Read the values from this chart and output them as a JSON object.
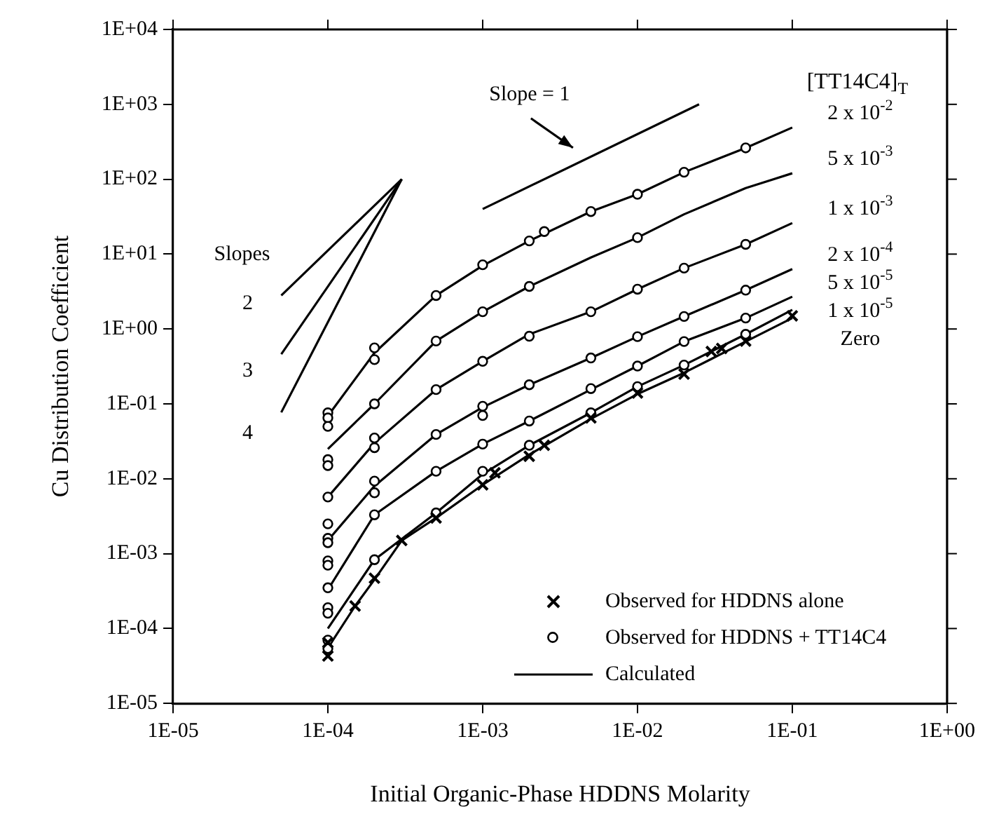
{
  "chart_data": {
    "type": "line",
    "xlabel": "Initial Organic-Phase HDDNS Molarity",
    "ylabel": "Cu Distribution Coefficient",
    "log": "xy",
    "grid": false,
    "legend": "bottom right",
    "xlim": [
      1e-05,
      1
    ],
    "ylim": [
      1e-05,
      10000
    ],
    "xticks": [
      {
        "value": 1e-05,
        "label": "1E-05"
      },
      {
        "value": 0.0001,
        "label": "1E-04"
      },
      {
        "value": 0.001,
        "label": "1E-03"
      },
      {
        "value": 0.01,
        "label": "1E-02"
      },
      {
        "value": 0.1,
        "label": "1E-01"
      },
      {
        "value": 1,
        "label": "1E+00"
      }
    ],
    "yticks": [
      {
        "value": 1e-05,
        "label": "1E-05"
      },
      {
        "value": 0.0001,
        "label": "1E-04"
      },
      {
        "value": 0.001,
        "label": "1E-03"
      },
      {
        "value": 0.01,
        "label": "1E-02"
      },
      {
        "value": 0.1,
        "label": "1E-01"
      },
      {
        "value": 1,
        "label": "1E+00"
      },
      {
        "value": 10,
        "label": "1E+01"
      },
      {
        "value": 100,
        "label": "1E+02"
      },
      {
        "value": 1000,
        "label": "1E+03"
      },
      {
        "value": 10000,
        "label": "1E+04"
      }
    ],
    "series": [
      {
        "name": "Observed for HDDNS alone",
        "type": "scatter",
        "marker": "cross",
        "color": "#000000",
        "x": [
          0.0001,
          0.0001,
          0.00015,
          0.0002,
          0.0003,
          0.0005,
          0.001,
          0.0012,
          0.002,
          0.0025,
          0.005,
          0.01,
          0.02,
          0.03,
          0.035,
          0.05,
          0.1
        ],
        "values": [
          6.5e-05,
          4.3e-05,
          0.0002,
          0.00047,
          0.0015,
          0.003,
          0.0083,
          0.012,
          0.02,
          0.028,
          0.065,
          0.14,
          0.25,
          0.5,
          0.55,
          0.69,
          1.5
        ]
      },
      {
        "name": "Observed for HDDNS + TT14C4",
        "type": "scatter",
        "marker": "circle",
        "color": "#000000",
        "x": [
          0.0001,
          0.0001,
          0.0001,
          0.0001,
          0.0001,
          0.0001,
          0.0001,
          0.0001,
          0.0001,
          0.0001,
          0.0001,
          0.0001,
          0.0001,
          0.0001,
          0.0001,
          0.0001,
          0.0002,
          0.0002,
          0.0002,
          0.0002,
          0.0002,
          0.0002,
          0.0002,
          0.0002,
          0.0002,
          0.0005,
          0.0005,
          0.0005,
          0.0005,
          0.0005,
          0.0005,
          0.001,
          0.001,
          0.001,
          0.001,
          0.001,
          0.001,
          0.001,
          0.002,
          0.002,
          0.002,
          0.002,
          0.002,
          0.002,
          0.0025,
          0.005,
          0.005,
          0.005,
          0.005,
          0.005,
          0.01,
          0.01,
          0.01,
          0.01,
          0.01,
          0.01,
          0.02,
          0.02,
          0.02,
          0.02,
          0.02,
          0.05,
          0.05,
          0.05,
          0.05,
          0.05
        ],
        "values": [
          0.076,
          0.065,
          0.05,
          0.018,
          0.015,
          0.0057,
          0.0025,
          0.0016,
          0.0014,
          0.0008,
          0.0007,
          0.00035,
          0.00019,
          0.00016,
          7e-05,
          5.4e-05,
          0.56,
          0.39,
          0.1,
          0.035,
          0.026,
          0.0093,
          0.0065,
          0.0033,
          0.00083,
          2.8,
          0.69,
          0.155,
          0.039,
          0.0126,
          0.0035,
          7.2,
          1.7,
          0.37,
          0.093,
          0.07,
          0.029,
          0.0126,
          15,
          3.7,
          0.8,
          0.18,
          0.059,
          0.028,
          20,
          37,
          1.7,
          0.41,
          0.16,
          0.076,
          63,
          16.6,
          3.4,
          0.79,
          0.32,
          0.17,
          124,
          6.5,
          1.47,
          0.68,
          0.33,
          262,
          13.5,
          3.3,
          1.4,
          0.85
        ]
      },
      {
        "name": "Calculated",
        "marker": "none",
        "color": "#000000",
        "x": [
          0.0001,
          0.0002,
          0.0005,
          0.001,
          0.002,
          0.005,
          0.01,
          0.02,
          0.05,
          0.1
        ],
        "values": [
          0.069,
          0.48,
          2.8,
          7,
          15,
          37,
          63,
          124,
          262,
          490
        ]
      },
      {
        "marker": "none",
        "color": "#000000",
        "x": [
          0.0001,
          0.0002,
          0.0005,
          0.001,
          0.002,
          0.005,
          0.01,
          0.02,
          0.05,
          0.1
        ],
        "values": [
          0.025,
          0.1,
          0.69,
          1.7,
          3.7,
          9,
          16.6,
          34,
          76,
          120
        ]
      },
      {
        "marker": "none",
        "color": "#000000",
        "x": [
          0.0001,
          0.0002,
          0.0005,
          0.001,
          0.002,
          0.005,
          0.01,
          0.02,
          0.05,
          0.1
        ],
        "values": [
          0.0057,
          0.03,
          0.155,
          0.37,
          0.85,
          1.7,
          3.4,
          6.5,
          13.5,
          26
        ]
      },
      {
        "marker": "none",
        "color": "#000000",
        "x": [
          0.0001,
          0.0002,
          0.0005,
          0.001,
          0.002,
          0.005,
          0.01,
          0.02,
          0.05,
          0.1
        ],
        "values": [
          0.0015,
          0.008,
          0.039,
          0.09,
          0.18,
          0.41,
          0.79,
          1.47,
          3.3,
          6.3
        ]
      },
      {
        "marker": "none",
        "color": "#000000",
        "x": [
          0.0001,
          0.0002,
          0.0005,
          0.001,
          0.002,
          0.005,
          0.01,
          0.02,
          0.05,
          0.1
        ],
        "values": [
          0.00033,
          0.0033,
          0.0126,
          0.029,
          0.059,
          0.155,
          0.32,
          0.68,
          1.4,
          2.7
        ]
      },
      {
        "marker": "none",
        "color": "#000000",
        "x": [
          0.0001,
          0.0002,
          0.0005,
          0.001,
          0.002,
          0.005,
          0.01,
          0.02,
          0.05,
          0.1
        ],
        "values": [
          0.0001,
          0.00083,
          0.0035,
          0.0115,
          0.028,
          0.076,
          0.17,
          0.33,
          0.85,
          1.8
        ]
      },
      {
        "marker": "none",
        "color": "#000000",
        "x": [
          0.0001,
          0.00015,
          0.0002,
          0.0003,
          0.0005,
          0.001,
          0.002,
          0.005,
          0.01,
          0.02,
          0.05,
          0.1
        ],
        "values": [
          5.5e-05,
          0.0002,
          0.00045,
          0.0015,
          0.003,
          0.0083,
          0.021,
          0.063,
          0.135,
          0.26,
          0.68,
          1.4
        ]
      },
      {
        "marker": "none",
        "color": "#000000",
        "x": [
          5e-05,
          0.0003
        ],
        "values": [
          2.8,
          100
        ]
      },
      {
        "marker": "none",
        "color": "#000000",
        "x": [
          5e-05,
          0.0003
        ],
        "values": [
          0.46,
          100
        ]
      },
      {
        "marker": "none",
        "color": "#000000",
        "x": [
          5e-05,
          0.0003
        ],
        "values": [
          0.077,
          100
        ]
      },
      {
        "marker": "none",
        "color": "#000000",
        "x": [
          0.001,
          0.025
        ],
        "values": [
          40,
          1000
        ]
      }
    ],
    "annotations": [
      "[TT14C4]$_{T}$",
      "2 x 10$^{-2}$",
      "5 x 10$^{-3}$",
      "1 x 10$^{-3}$",
      "2 x 10$^{-4}$",
      "5 x 10$^{-5}$",
      "1 x 10$^{-5}$",
      "Zero",
      "Slope = 1",
      "Slopes",
      "2",
      "3",
      "4"
    ]
  }
}
